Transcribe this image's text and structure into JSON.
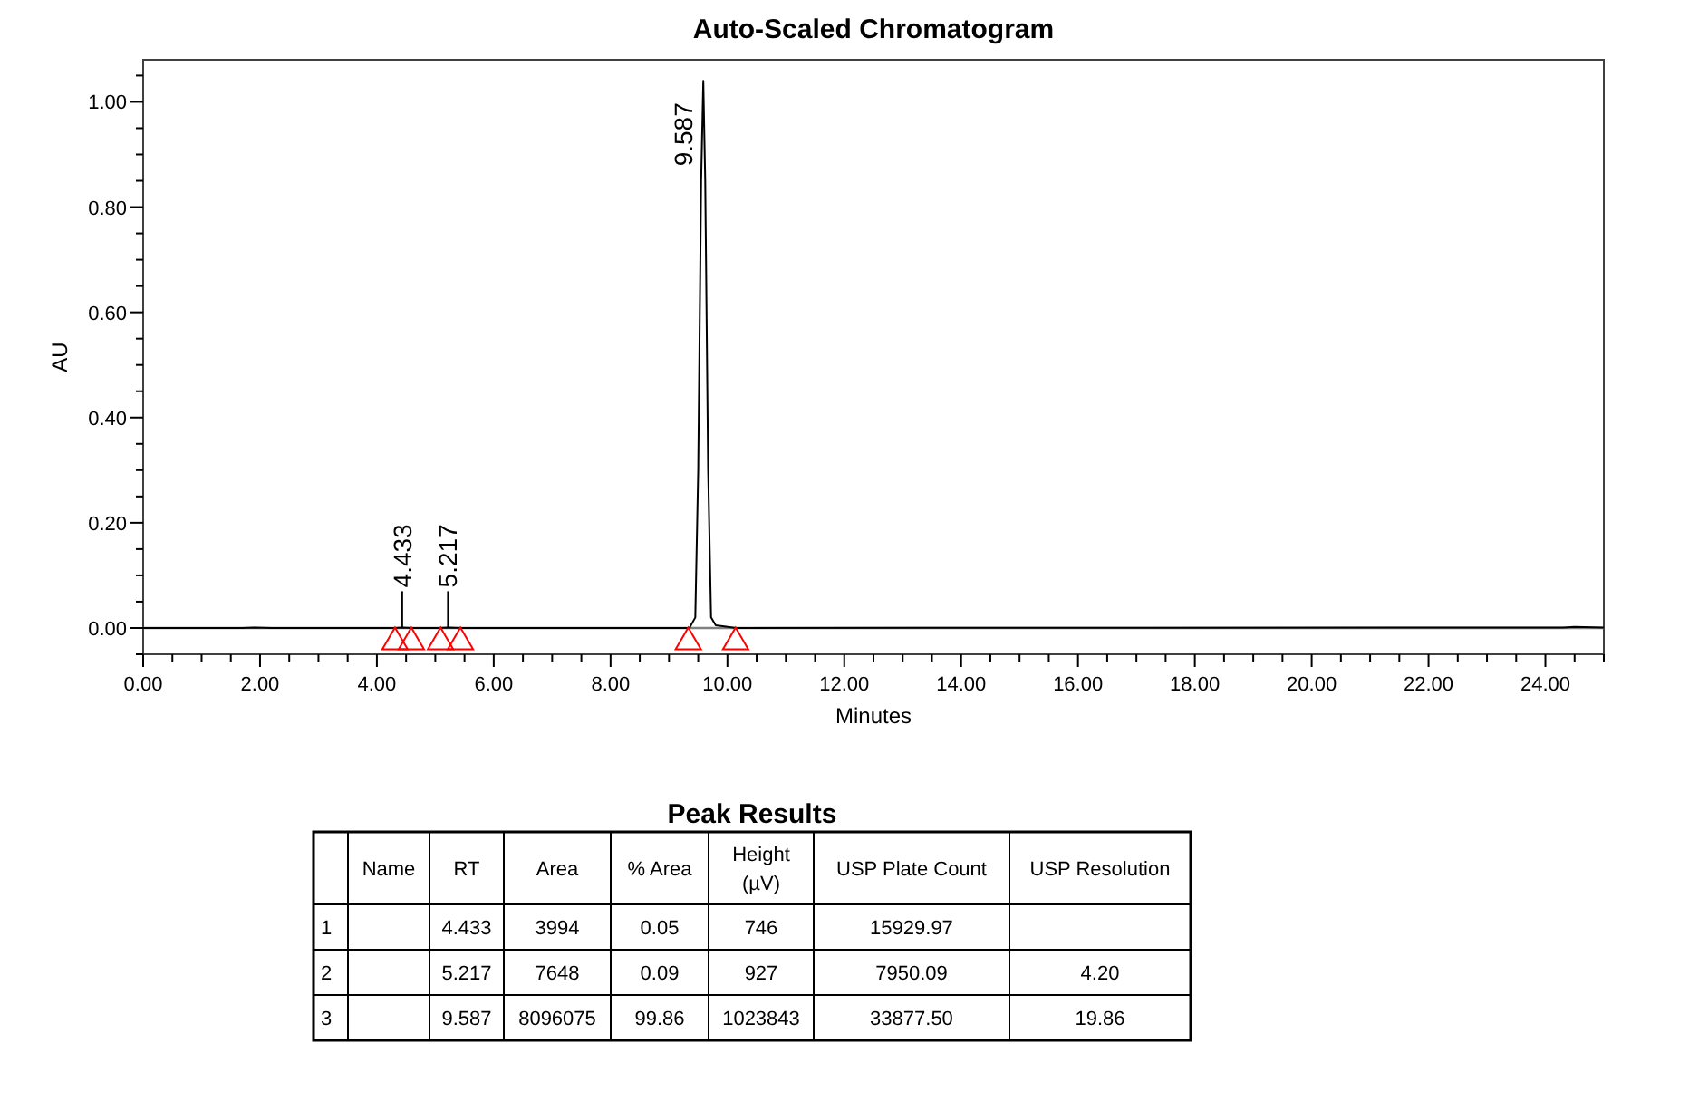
{
  "chart_data": [
    {
      "type": "line",
      "title": "Auto-Scaled Chromatogram",
      "xlabel": "Minutes",
      "ylabel": "AU",
      "xlim": [
        0,
        25
      ],
      "ylim": [
        -0.05,
        1.08
      ],
      "xticks": [
        {
          "value": 0,
          "label": "0.00"
        },
        {
          "value": 2,
          "label": "2.00"
        },
        {
          "value": 4,
          "label": "4.00"
        },
        {
          "value": 6,
          "label": "6.00"
        },
        {
          "value": 8,
          "label": "8.00"
        },
        {
          "value": 10,
          "label": "10.00"
        },
        {
          "value": 12,
          "label": "12.00"
        },
        {
          "value": 14,
          "label": "14.00"
        },
        {
          "value": 16,
          "label": "16.00"
        },
        {
          "value": 18,
          "label": "18.00"
        },
        {
          "value": 20,
          "label": "20.00"
        },
        {
          "value": 22,
          "label": "22.00"
        },
        {
          "value": 24,
          "label": "24.00"
        }
      ],
      "yticks": [
        {
          "value": 0,
          "label": "0.00"
        },
        {
          "value": 0.2,
          "label": "0.20"
        },
        {
          "value": 0.4,
          "label": "0.40"
        },
        {
          "value": 0.6,
          "label": "0.60"
        },
        {
          "value": 0.8,
          "label": "0.80"
        },
        {
          "value": 1,
          "label": "1.00"
        }
      ],
      "series": [
        {
          "type": "line",
          "color": "#000000",
          "x": [
            0,
            1.7,
            1.9,
            2.2,
            4.3,
            4.433,
            4.6,
            5.05,
            5.217,
            5.45,
            9.35,
            9.45,
            9.5,
            9.55,
            9.587,
            9.62,
            9.67,
            9.72,
            9.8,
            10.15,
            24.3,
            24.5,
            25
          ],
          "values": [
            0,
            0,
            0.001,
            0,
            0,
            0.001,
            0,
            0,
            0.001,
            0,
            0,
            0.02,
            0.3,
            0.85,
            1.04,
            0.85,
            0.3,
            0.02,
            0.005,
            0,
            0.001,
            0.002,
            0.001
          ]
        },
        {
          "type": "scatter",
          "color": "#ff0000",
          "marker": "triangle",
          "x": [
            4.31,
            4.59,
            5.09,
            5.43,
            9.33,
            10.14
          ],
          "values": [
            -0.02,
            -0.02,
            -0.02,
            -0.02,
            -0.02,
            -0.02
          ]
        }
      ],
      "ref_lines": [
        {
          "axis": "y",
          "value": 0,
          "color": "#808080"
        }
      ],
      "annotations": [
        {
          "text": "4.433",
          "x": 4.433,
          "y": 0.001
        },
        {
          "text": "5.217",
          "x": 5.217,
          "y": 0.001
        },
        {
          "text": "9.587",
          "x": 9.587,
          "y": 1.04
        }
      ],
      "grid": false
    },
    {
      "type": "other",
      "title": "Peak Results",
      "categories": [
        null,
        "Name",
        "RT",
        "Area",
        "% Area",
        "Height (µV)",
        "USP Plate Count",
        "USP Resolution"
      ],
      "cell_labels": [
        [
          "1",
          null,
          "4.433",
          "3994",
          "0.05",
          "746",
          "15929.97",
          null
        ],
        [
          "2",
          null,
          "5.217",
          "7648",
          "0.09",
          "927",
          "7950.09",
          "4.20"
        ],
        [
          "3",
          null,
          "9.587",
          "8096075",
          "99.86",
          "1023843",
          "33877.50",
          "19.86"
        ]
      ]
    }
  ]
}
